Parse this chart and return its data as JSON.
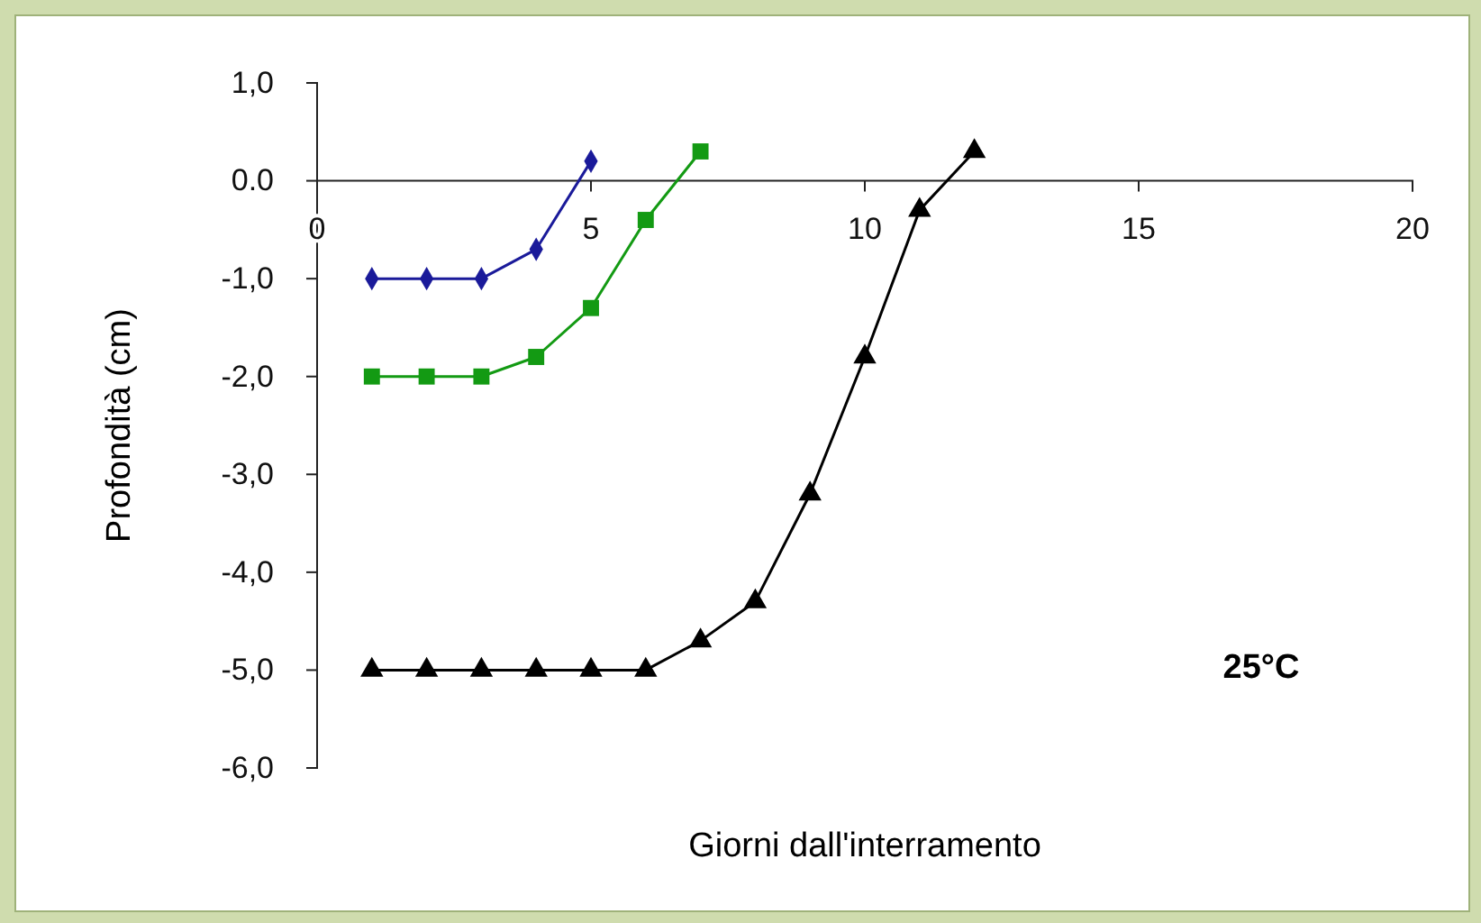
{
  "chart_data": {
    "type": "line",
    "xlabel": "Giorni dall'interramento",
    "ylabel": "Profondità (cm)",
    "xlim": [
      0,
      20
    ],
    "xticks": [
      0,
      5,
      10,
      15,
      20
    ],
    "ylim": [
      -6,
      1
    ],
    "yticks": [
      {
        "value": 1,
        "label": "1,0"
      },
      {
        "value": 0,
        "label": "0.0"
      },
      {
        "value": -1,
        "label": "-1,0"
      },
      {
        "value": -2,
        "label": "-2,0"
      },
      {
        "value": -3,
        "label": "-3,0"
      },
      {
        "value": -4,
        "label": "-4,0"
      },
      {
        "value": -5,
        "label": "-5,0"
      },
      {
        "value": -6,
        "label": "-6,0"
      }
    ],
    "grid": false,
    "annotations": [
      "25°C"
    ],
    "series": [
      {
        "color": "#1a1a9a",
        "marker": "diamond",
        "x": [
          1,
          2,
          3,
          4,
          5
        ],
        "values": [
          -1,
          -1,
          -1,
          -0.7,
          0.2
        ]
      },
      {
        "color": "#139a13",
        "marker": "square",
        "x": [
          1,
          2,
          3,
          4,
          5,
          6,
          7
        ],
        "values": [
          -2,
          -2,
          -2,
          -1.8,
          -1.3,
          -0.4,
          0.3
        ]
      },
      {
        "color": "#000000",
        "marker": "triangle",
        "x": [
          1,
          2,
          3,
          4,
          5,
          6,
          7,
          8,
          9,
          10,
          11,
          12
        ],
        "values": [
          -5,
          -5,
          -5,
          -5,
          -5,
          -5,
          -4.7,
          -4.3,
          -3.2,
          -1.8,
          -0.3,
          0.3
        ]
      }
    ]
  }
}
